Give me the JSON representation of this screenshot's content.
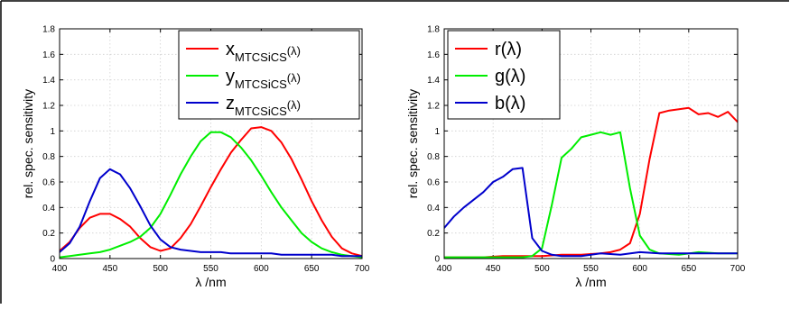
{
  "chart_data": [
    {
      "type": "line",
      "xlabel": "λ /nm",
      "ylabel": "rel. spec. sensitivity",
      "xlim": [
        400,
        700
      ],
      "ylim": [
        0,
        1.8
      ],
      "xticks": [
        "400",
        "450",
        "500",
        "550",
        "600",
        "650",
        "700"
      ],
      "yticks": [
        "0",
        "0.2",
        "0.4",
        "0.6",
        "0.8",
        "1",
        "1.2",
        "1.4",
        "1.6",
        "1.8"
      ],
      "grid": true,
      "legend_position": "top-right",
      "series": [
        {
          "name": "x",
          "subscript": "MTCSiCS",
          "suffix": "(λ)",
          "color": "#ff0000",
          "x": [
            400,
            410,
            420,
            430,
            440,
            450,
            460,
            470,
            480,
            490,
            500,
            510,
            520,
            530,
            540,
            550,
            560,
            570,
            580,
            590,
            600,
            610,
            620,
            630,
            640,
            650,
            660,
            670,
            680,
            690,
            700
          ],
          "y": [
            0.06,
            0.13,
            0.24,
            0.32,
            0.35,
            0.35,
            0.31,
            0.25,
            0.16,
            0.09,
            0.06,
            0.08,
            0.16,
            0.27,
            0.41,
            0.56,
            0.7,
            0.83,
            0.93,
            1.02,
            1.03,
            1.0,
            0.91,
            0.78,
            0.62,
            0.45,
            0.3,
            0.17,
            0.08,
            0.04,
            0.02
          ]
        },
        {
          "name": "y",
          "subscript": "MTCSiCS",
          "suffix": "(λ)",
          "color": "#00ee00",
          "x": [
            400,
            410,
            420,
            430,
            440,
            450,
            460,
            470,
            480,
            490,
            500,
            510,
            520,
            530,
            540,
            550,
            560,
            570,
            580,
            590,
            600,
            610,
            620,
            630,
            640,
            650,
            660,
            670,
            680,
            690,
            700
          ],
          "y": [
            0.01,
            0.02,
            0.03,
            0.04,
            0.05,
            0.07,
            0.1,
            0.13,
            0.17,
            0.24,
            0.35,
            0.5,
            0.66,
            0.8,
            0.92,
            0.99,
            0.99,
            0.95,
            0.87,
            0.77,
            0.65,
            0.52,
            0.4,
            0.3,
            0.2,
            0.13,
            0.08,
            0.05,
            0.03,
            0.02,
            0.01
          ]
        },
        {
          "name": "z",
          "subscript": "MTCSiCS",
          "suffix": "(λ)",
          "color": "#0000cc",
          "x": [
            400,
            410,
            420,
            430,
            440,
            450,
            460,
            470,
            480,
            490,
            500,
            510,
            520,
            530,
            540,
            550,
            560,
            570,
            580,
            590,
            600,
            610,
            620,
            630,
            640,
            650,
            660,
            670,
            680,
            690,
            700
          ],
          "y": [
            0.05,
            0.12,
            0.25,
            0.45,
            0.63,
            0.7,
            0.66,
            0.55,
            0.41,
            0.26,
            0.15,
            0.09,
            0.07,
            0.06,
            0.05,
            0.05,
            0.05,
            0.04,
            0.04,
            0.04,
            0.04,
            0.04,
            0.03,
            0.03,
            0.03,
            0.03,
            0.03,
            0.03,
            0.02,
            0.02,
            0.02
          ]
        }
      ]
    },
    {
      "type": "line",
      "xlabel": "λ /nm",
      "ylabel": "rel. spec. sensitivity",
      "xlim": [
        400,
        700
      ],
      "ylim": [
        0,
        1.8
      ],
      "xticks": [
        "400",
        "450",
        "500",
        "550",
        "600",
        "650",
        "700"
      ],
      "yticks": [
        "0",
        "0.2",
        "0.4",
        "0.6",
        "0.8",
        "1",
        "1.2",
        "1.4",
        "1.6",
        "1.8"
      ],
      "grid": true,
      "legend_position": "top-left",
      "series": [
        {
          "name": "r",
          "subscript": "",
          "suffix": "(λ)",
          "color": "#ff0000",
          "x": [
            400,
            420,
            440,
            460,
            480,
            500,
            520,
            540,
            560,
            570,
            580,
            590,
            600,
            610,
            620,
            630,
            640,
            650,
            660,
            670,
            680,
            690,
            700
          ],
          "y": [
            0.01,
            0.01,
            0.01,
            0.02,
            0.02,
            0.02,
            0.03,
            0.03,
            0.04,
            0.05,
            0.07,
            0.12,
            0.35,
            0.78,
            1.14,
            1.16,
            1.17,
            1.18,
            1.13,
            1.14,
            1.11,
            1.15,
            1.07
          ]
        },
        {
          "name": "g",
          "subscript": "",
          "suffix": "(λ)",
          "color": "#00ee00",
          "x": [
            400,
            420,
            440,
            460,
            480,
            490,
            500,
            510,
            520,
            530,
            540,
            550,
            560,
            570,
            580,
            590,
            600,
            610,
            620,
            640,
            660,
            680,
            700
          ],
          "y": [
            0.01,
            0.01,
            0.01,
            0.01,
            0.01,
            0.02,
            0.08,
            0.42,
            0.79,
            0.86,
            0.95,
            0.97,
            0.99,
            0.97,
            0.99,
            0.55,
            0.18,
            0.07,
            0.04,
            0.03,
            0.05,
            0.04,
            0.04
          ]
        },
        {
          "name": "b",
          "subscript": "",
          "suffix": "(λ)",
          "color": "#0000cc",
          "x": [
            400,
            410,
            420,
            430,
            440,
            450,
            460,
            470,
            480,
            490,
            500,
            510,
            520,
            540,
            560,
            580,
            600,
            620,
            640,
            660,
            680,
            700
          ],
          "y": [
            0.24,
            0.33,
            0.4,
            0.46,
            0.52,
            0.6,
            0.64,
            0.7,
            0.71,
            0.16,
            0.06,
            0.03,
            0.02,
            0.02,
            0.04,
            0.03,
            0.05,
            0.04,
            0.04,
            0.04,
            0.04,
            0.04
          ]
        }
      ]
    }
  ]
}
